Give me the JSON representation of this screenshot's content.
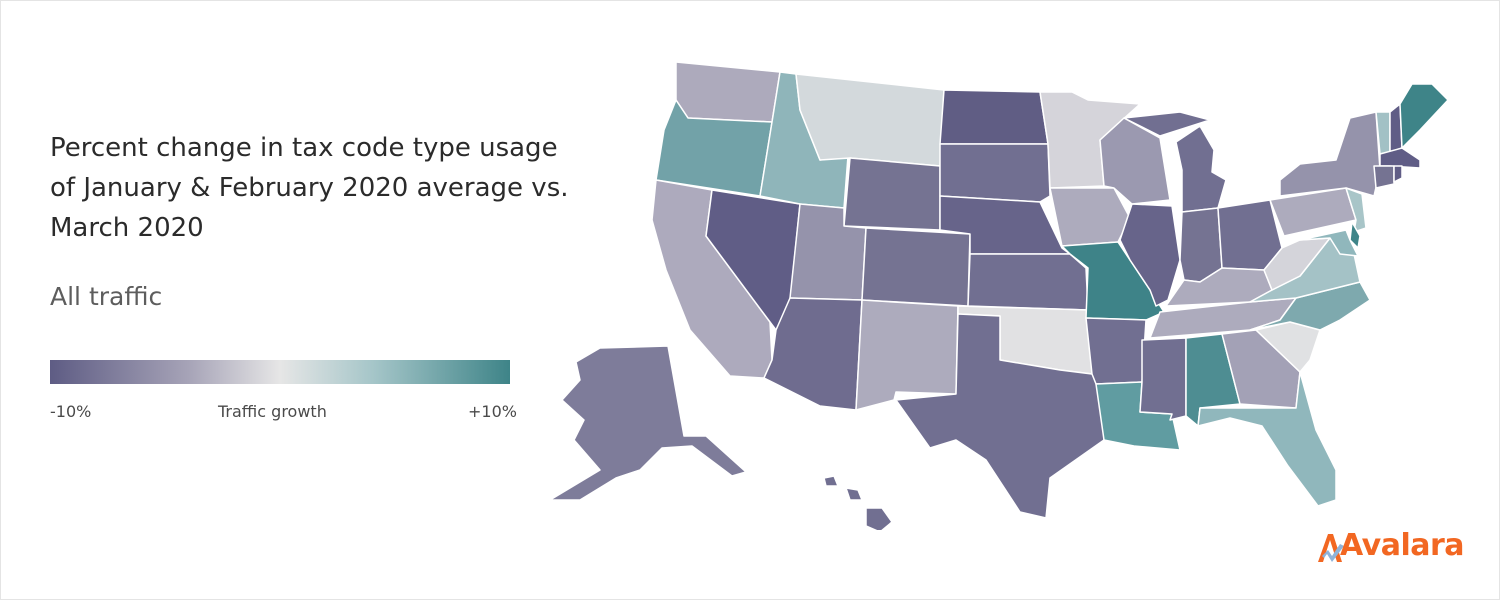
{
  "title": "Percent change in tax code type usage of January & February 2020 average vs. March 2020",
  "subtitle": "All traffic",
  "legend": {
    "min_label": "-10%",
    "mid_label": "Traffic growth",
    "max_label": "+10%",
    "colors": [
      "#5e5c84",
      "#a6a3b7",
      "#e6e6e6",
      "#a6c6c9",
      "#3e8488"
    ]
  },
  "brand": {
    "name": "Avalara",
    "color": "#f26722"
  },
  "states": [
    {
      "id": "WA",
      "color": "#adaabc"
    },
    {
      "id": "OR",
      "color": "#72a2a8"
    },
    {
      "id": "CA",
      "color": "#adaabd"
    },
    {
      "id": "NV",
      "color": "#605d86"
    },
    {
      "id": "ID",
      "color": "#8fb5ba"
    },
    {
      "id": "MT",
      "color": "#d3d9dc"
    },
    {
      "id": "WY",
      "color": "#757392"
    },
    {
      "id": "UT",
      "color": "#9593ab"
    },
    {
      "id": "AZ",
      "color": "#6f6c8f"
    },
    {
      "id": "CO",
      "color": "#757392"
    },
    {
      "id": "NM",
      "color": "#adabbd"
    },
    {
      "id": "ND",
      "color": "#605d84"
    },
    {
      "id": "SD",
      "color": "#716f91"
    },
    {
      "id": "NE",
      "color": "#67648a"
    },
    {
      "id": "KS",
      "color": "#716f91"
    },
    {
      "id": "OK",
      "color": "#e1e1e3"
    },
    {
      "id": "TX",
      "color": "#716f91"
    },
    {
      "id": "MN",
      "color": "#d5d4da"
    },
    {
      "id": "IA",
      "color": "#adabbd"
    },
    {
      "id": "MO",
      "color": "#3e8388"
    },
    {
      "id": "AR",
      "color": "#716f91"
    },
    {
      "id": "LA",
      "color": "#609ca1"
    },
    {
      "id": "WI",
      "color": "#9b99b0"
    },
    {
      "id": "IL",
      "color": "#67648a"
    },
    {
      "id": "MI",
      "color": "#716f91"
    },
    {
      "id": "IN",
      "color": "#757392"
    },
    {
      "id": "OH",
      "color": "#716f91"
    },
    {
      "id": "KY",
      "color": "#adabbd"
    },
    {
      "id": "TN",
      "color": "#adabbd"
    },
    {
      "id": "MS",
      "color": "#716f91"
    },
    {
      "id": "AL",
      "color": "#4e8d92"
    },
    {
      "id": "GA",
      "color": "#a3a1b6"
    },
    {
      "id": "FL",
      "color": "#90b7bc"
    },
    {
      "id": "SC",
      "color": "#e0e1e3"
    },
    {
      "id": "NC",
      "color": "#7ea9ae"
    },
    {
      "id": "VA",
      "color": "#a4c2c6"
    },
    {
      "id": "WV",
      "color": "#d4d4da"
    },
    {
      "id": "PA",
      "color": "#adabbd"
    },
    {
      "id": "NY",
      "color": "#9593ab"
    },
    {
      "id": "NJ",
      "color": "#a8c5c8"
    },
    {
      "id": "DE",
      "color": "#3e8488"
    },
    {
      "id": "MD",
      "color": "#90b7bc"
    },
    {
      "id": "VT",
      "color": "#a2c1c5"
    },
    {
      "id": "NH",
      "color": "#605d86"
    },
    {
      "id": "ME",
      "color": "#3e8488"
    },
    {
      "id": "MA",
      "color": "#605d86"
    },
    {
      "id": "CT",
      "color": "#757392"
    },
    {
      "id": "RI",
      "color": "#605d86"
    },
    {
      "id": "AK",
      "color": "#7e7c9a"
    },
    {
      "id": "HI",
      "color": "#716f91"
    }
  ]
}
